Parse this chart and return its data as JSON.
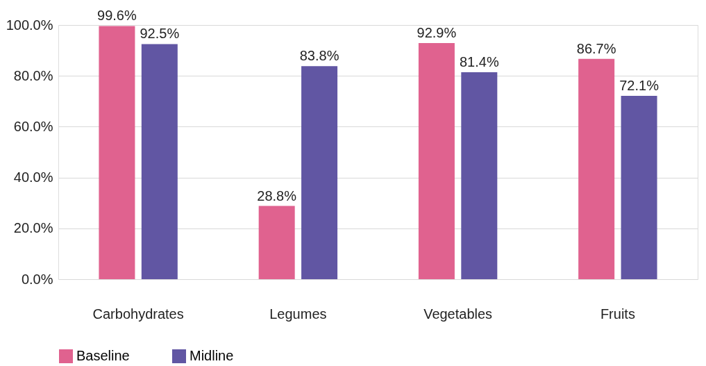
{
  "chart_data": {
    "type": "bar",
    "categories": [
      "Carbohydrates",
      "Legumes",
      "Vegetables",
      "Fruits"
    ],
    "series": [
      {
        "name": "Baseline",
        "color": "#e0628f",
        "values": [
          99.6,
          28.8,
          92.9,
          86.7
        ],
        "value_labels": [
          "99.6%",
          "28.8%",
          "92.9%",
          "86.7%"
        ]
      },
      {
        "name": "Midline",
        "color": "#6156a3",
        "values": [
          92.5,
          83.8,
          81.4,
          72.1
        ],
        "value_labels": [
          "92.5%",
          "83.8%",
          "81.4%",
          "72.1%"
        ]
      }
    ],
    "ylim": [
      0,
      100
    ],
    "yticks": [
      {
        "value": 0,
        "label": "0.0%"
      },
      {
        "value": 20,
        "label": "20.0%"
      },
      {
        "value": 40,
        "label": "40.0%"
      },
      {
        "value": 60,
        "label": "60.0%"
      },
      {
        "value": 80,
        "label": "80.0%"
      },
      {
        "value": 100,
        "label": "100.0%"
      }
    ],
    "grid": "y",
    "legend": "bottom"
  }
}
